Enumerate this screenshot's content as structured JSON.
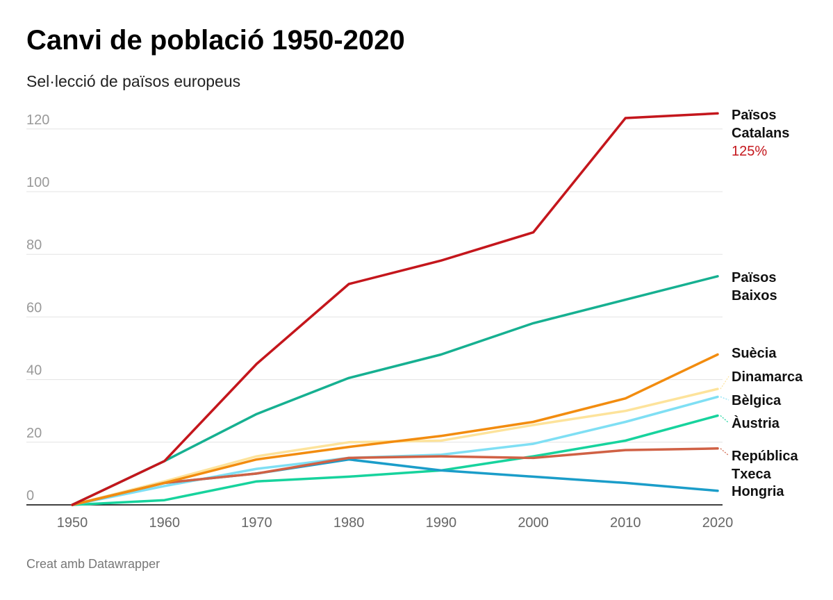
{
  "title": "Canvi de població 1950-2020",
  "subtitle": "Sel·lecció de països europeus",
  "footer": "Creat amb Datawrapper",
  "chart_data": {
    "type": "line",
    "title": "Canvi de població 1950-2020",
    "subtitle": "Sel·lecció de països europeus",
    "xlabel": "",
    "ylabel": "",
    "x": [
      1950,
      1960,
      1970,
      1980,
      1990,
      2000,
      2010,
      2020
    ],
    "xlim": [
      1950,
      2020
    ],
    "ylim": [
      0,
      125
    ],
    "yticks": [
      0,
      20,
      40,
      60,
      80,
      100,
      120
    ],
    "grid": true,
    "legend": "direct-labels-right",
    "series": [
      {
        "key": "pc",
        "name": "Països Catalans",
        "color": "#c4161c",
        "values": [
          0,
          14,
          45,
          70.5,
          78,
          87,
          123.5,
          125
        ],
        "annotation": "125%"
      },
      {
        "key": "pb",
        "name": "Països Baixos",
        "color": "#16b091",
        "values": [
          0,
          14,
          29,
          40.5,
          48,
          58,
          65.5,
          73
        ]
      },
      {
        "key": "hu",
        "name": "Hongria",
        "color": "#1b9dc9",
        "values": [
          0,
          7,
          10,
          14.5,
          11,
          9,
          7,
          4.5
        ]
      },
      {
        "key": "rt",
        "name": "República Txeca",
        "color": "#d06145",
        "values": [
          0,
          7,
          10,
          15,
          15.5,
          15,
          17.5,
          18
        ]
      },
      {
        "key": "at",
        "name": "Àustria",
        "color": "#17d39d",
        "values": [
          0,
          1.5,
          7.5,
          9,
          11,
          15.5,
          20.5,
          28.5
        ]
      },
      {
        "key": "be",
        "name": "Bèlgica",
        "color": "#7fdff4",
        "values": [
          0,
          6,
          11.5,
          15,
          16,
          19.5,
          26.5,
          34.5
        ]
      },
      {
        "key": "dk",
        "name": "Dinamarca",
        "color": "#fde39b",
        "values": [
          0,
          7.5,
          15.5,
          20,
          20.5,
          25.5,
          30,
          37
        ]
      },
      {
        "key": "se",
        "name": "Suècia",
        "color": "#f28c0f",
        "values": [
          0,
          7,
          14.5,
          18.5,
          22,
          26.5,
          34,
          48
        ]
      }
    ]
  }
}
